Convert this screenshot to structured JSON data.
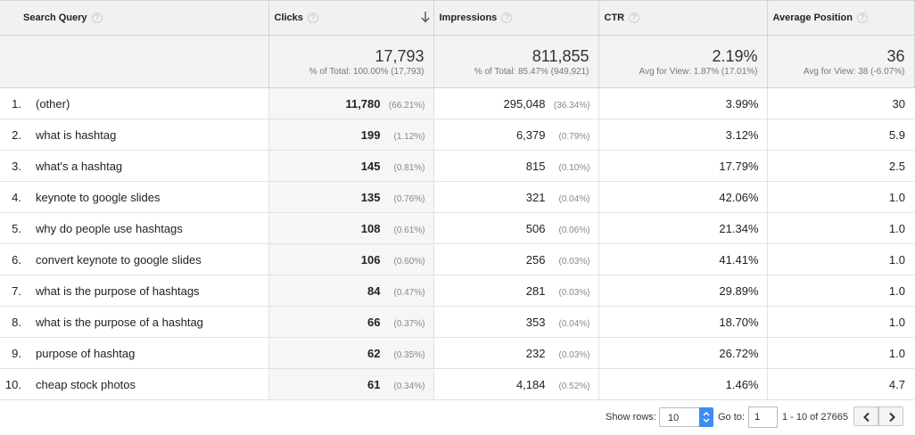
{
  "columns": {
    "query": "Search Query",
    "clicks": "Clicks",
    "impressions": "Impressions",
    "ctr": "CTR",
    "position": "Average Position",
    "help_glyph": "?"
  },
  "totals": {
    "clicks": {
      "value": "17,793",
      "sub": "% of Total: 100.00% (17,793)"
    },
    "impressions": {
      "value": "811,855",
      "sub": "% of Total: 85.47% (949,921)"
    },
    "ctr": {
      "value": "2.19%",
      "sub": "Avg for View: 1.87% (17.01%)"
    },
    "position": {
      "value": "36",
      "sub": "Avg for View: 38 (-6.07%)"
    }
  },
  "rows": [
    {
      "rank": "1.",
      "query": "(other)",
      "clicks": "11,780",
      "clicks_pct": "(66.21%)",
      "impressions": "295,048",
      "impressions_pct": "(36.34%)",
      "ctr": "3.99%",
      "position": "30"
    },
    {
      "rank": "2.",
      "query": "what is hashtag",
      "clicks": "199",
      "clicks_pct": "(1.12%)",
      "impressions": "6,379",
      "impressions_pct": "(0.79%)",
      "ctr": "3.12%",
      "position": "5.9"
    },
    {
      "rank": "3.",
      "query": "what's a hashtag",
      "clicks": "145",
      "clicks_pct": "(0.81%)",
      "impressions": "815",
      "impressions_pct": "(0.10%)",
      "ctr": "17.79%",
      "position": "2.5"
    },
    {
      "rank": "4.",
      "query": "keynote to google slides",
      "clicks": "135",
      "clicks_pct": "(0.76%)",
      "impressions": "321",
      "impressions_pct": "(0.04%)",
      "ctr": "42.06%",
      "position": "1.0"
    },
    {
      "rank": "5.",
      "query": "why do people use hashtags",
      "clicks": "108",
      "clicks_pct": "(0.61%)",
      "impressions": "506",
      "impressions_pct": "(0.06%)",
      "ctr": "21.34%",
      "position": "1.0"
    },
    {
      "rank": "6.",
      "query": "convert keynote to google slides",
      "clicks": "106",
      "clicks_pct": "(0.60%)",
      "impressions": "256",
      "impressions_pct": "(0.03%)",
      "ctr": "41.41%",
      "position": "1.0"
    },
    {
      "rank": "7.",
      "query": "what is the purpose of hashtags",
      "clicks": "84",
      "clicks_pct": "(0.47%)",
      "impressions": "281",
      "impressions_pct": "(0.03%)",
      "ctr": "29.89%",
      "position": "1.0"
    },
    {
      "rank": "8.",
      "query": "what is the purpose of a hashtag",
      "clicks": "66",
      "clicks_pct": "(0.37%)",
      "impressions": "353",
      "impressions_pct": "(0.04%)",
      "ctr": "18.70%",
      "position": "1.0"
    },
    {
      "rank": "9.",
      "query": "purpose of hashtag",
      "clicks": "62",
      "clicks_pct": "(0.35%)",
      "impressions": "232",
      "impressions_pct": "(0.03%)",
      "ctr": "26.72%",
      "position": "1.0"
    },
    {
      "rank": "10.",
      "query": "cheap stock photos",
      "clicks": "61",
      "clicks_pct": "(0.34%)",
      "impressions": "4,184",
      "impressions_pct": "(0.52%)",
      "ctr": "1.46%",
      "position": "4.7"
    }
  ],
  "pager": {
    "show_rows_label": "Show rows:",
    "show_rows_value": "10",
    "goto_label": "Go to:",
    "goto_value": "1",
    "range": "1 - 10 of 27665"
  },
  "icons": {
    "sort": "arrow-down-icon",
    "help": "help-icon",
    "prev": "chevron-left-icon",
    "next": "chevron-right-icon",
    "spinner": "up-down-spinner-icon"
  },
  "colors": {
    "header_bg": "#f1f1f1",
    "sorted_column_bg": "#f6f6f6",
    "spinner_blue": "#3d8bf4"
  }
}
